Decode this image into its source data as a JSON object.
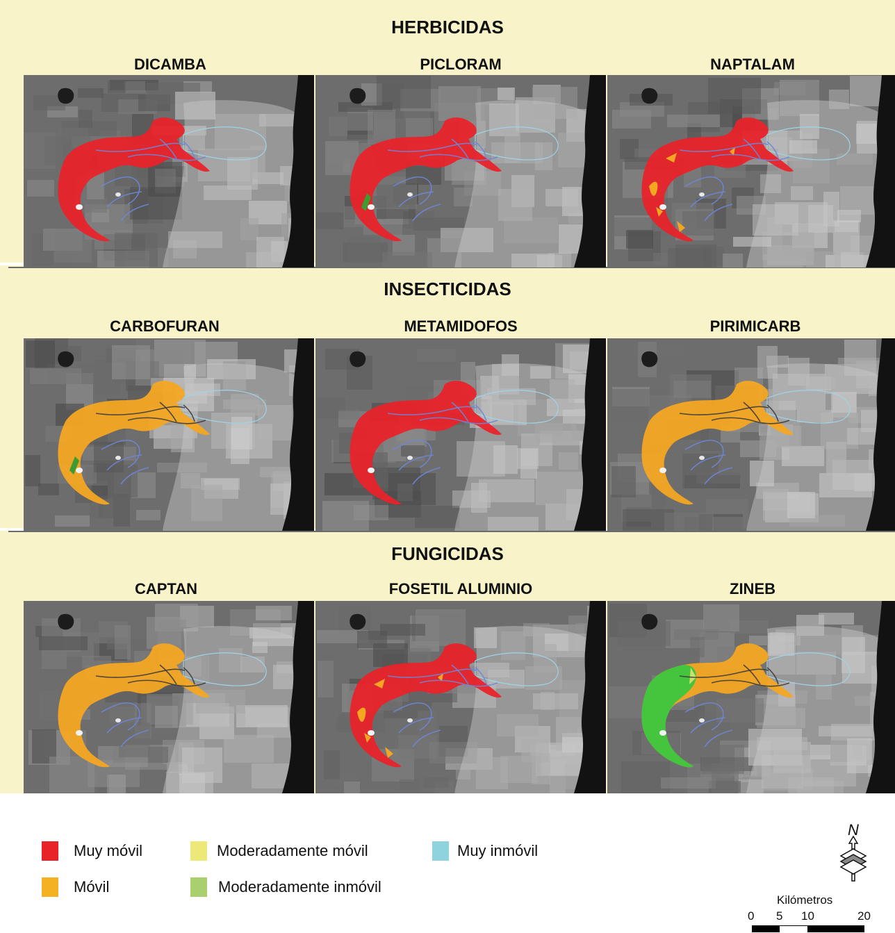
{
  "groups": [
    {
      "title": "HERBICIDAS",
      "maps": [
        {
          "name": "DICAMBA",
          "main": "#e8232a",
          "variant": "red"
        },
        {
          "name": "PICLORAM",
          "main": "#e8232a",
          "variant": "red-green"
        },
        {
          "name": "NAPTALAM",
          "main": "#e8232a",
          "variant": "red-orange"
        }
      ]
    },
    {
      "title": "INSECTICIDAS",
      "maps": [
        {
          "name": "CARBOFURAN",
          "main": "#f4a622",
          "variant": "orange-green"
        },
        {
          "name": "METAMIDOFOS",
          "main": "#e8232a",
          "variant": "red"
        },
        {
          "name": "PIRIMICARB",
          "main": "#f4a622",
          "variant": "orange"
        }
      ]
    },
    {
      "title": "FUNGICIDAS",
      "maps": [
        {
          "name": "CAPTAN",
          "main": "#f4a622",
          "variant": "orange"
        },
        {
          "name": "FOSETIL ALUMINIO",
          "main": "#e8232a",
          "variant": "red-orange"
        },
        {
          "name": "ZINEB",
          "main": "#f4a622",
          "variant": "orange-green-west"
        }
      ]
    }
  ],
  "legend": [
    {
      "label": "Muy móvil",
      "color": "#e8232a"
    },
    {
      "label": "Móvil",
      "color": "#f4b223"
    },
    {
      "label": "Moderadamente móvil",
      "color": "#ece978"
    },
    {
      "label": "Moderadamente inmóvil",
      "color": "#a9cf6f"
    },
    {
      "label": "Muy inmóvil",
      "color": "#8fd3df"
    }
  ],
  "north_label": "N",
  "scale": {
    "title": "Kilómetros",
    "ticks": [
      "0",
      "5",
      "10",
      "20"
    ]
  }
}
